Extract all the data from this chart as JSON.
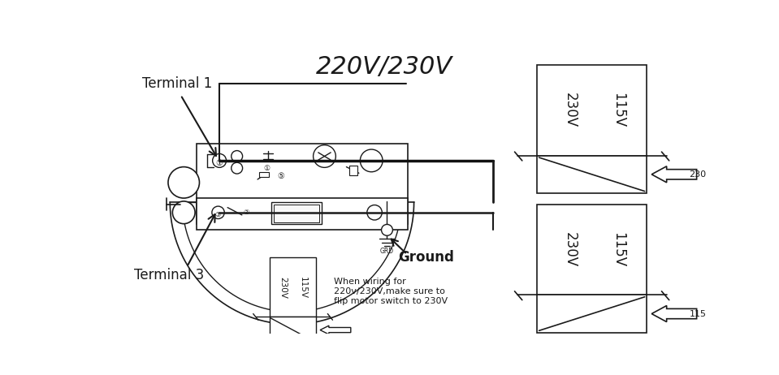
{
  "bg_color": "#ffffff",
  "line_color": "#1a1a1a",
  "title": "220V/230V",
  "terminal1_label": "Terminal 1",
  "terminal3_label": "Terminal 3",
  "ground_label": "Ground",
  "note_line1": "When wiring for",
  "note_line2": "220v/230V,make sure to",
  "note_line3": "flip motor switch to 230V",
  "label_230": "230",
  "label_115": "115",
  "v230": "230V",
  "v115": "115V",
  "grd": "GRD"
}
